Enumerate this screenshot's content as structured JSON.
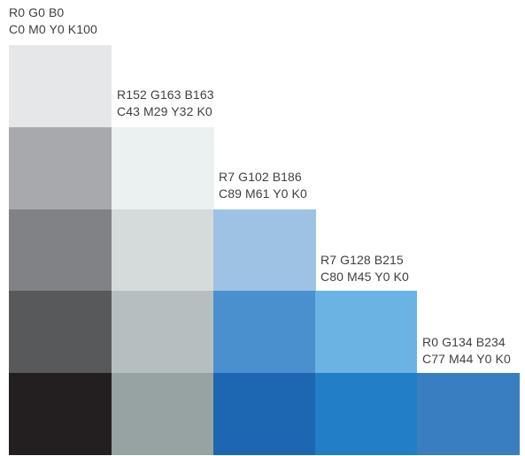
{
  "columns": [
    {
      "line1": "R0 G0 B0",
      "line2": "C0 M0 Y0 K100",
      "swatches": [
        "#e6e7e8",
        "#a7a9ac",
        "#808285",
        "#58595b",
        "#231f20"
      ]
    },
    {
      "line1": "R152 G163 B163",
      "line2": "C43 M29 Y32 K0",
      "swatches": [
        "#ebf1f1",
        "#d5dbdb",
        "#b6bfbf",
        "#97a3a3"
      ]
    },
    {
      "line1": "R7 G102 B186",
      "line2": "C89 M61 Y0 K0",
      "swatches": [
        "#9dc2e4",
        "#4a90cf",
        "#1d66b1"
      ]
    },
    {
      "line1": "R7 G128 B215",
      "line2": "C80 M45 Y0 K0",
      "swatches": [
        "#6bb3e3",
        "#217ec7"
      ]
    },
    {
      "line1": "R0 G134 B234",
      "line2": "C77 M44 Y0 K0",
      "swatches": [
        "#3a7ec2"
      ]
    }
  ]
}
